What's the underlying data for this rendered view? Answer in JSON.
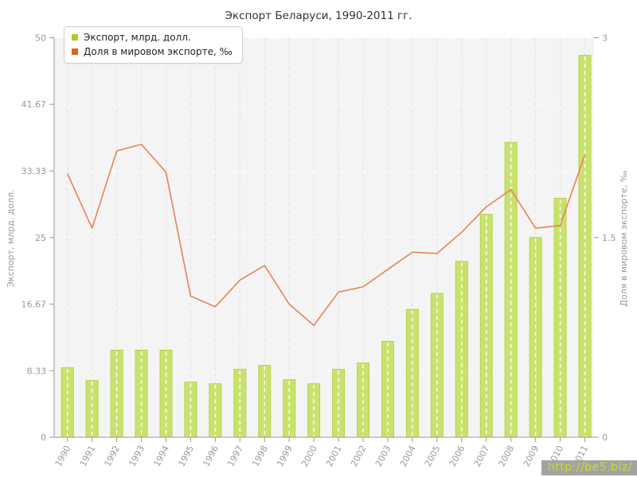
{
  "title": "Экспорт Беларуси, 1990-2011 гг.",
  "legend": {
    "items": [
      {
        "label": "Экспорт, млрд. долл.",
        "color": "#a9cc2f"
      },
      {
        "label": "Доля в мировом экспорте, ‰",
        "color": "#dd6428"
      }
    ]
  },
  "watermark": {
    "text": "http://be5.biz/"
  },
  "colors": {
    "plot_bg": "#f4f4f4",
    "grid_horizontal": "#ffffff",
    "grid_vertical": "#e3e3e3",
    "axis_line": "#9a9a9a",
    "tick_text": "#999999",
    "bar_fill": "#c9e26e",
    "bar_border": "#b3d449",
    "bar_center_dash": "#ffffff",
    "line_color": "#e8825a"
  },
  "chart_data": {
    "type": "combo",
    "title": "Экспорт Беларуси, 1990-2011 гг.",
    "categories": [
      "1990",
      "1991",
      "1992",
      "1993",
      "1994",
      "1995",
      "1996",
      "1997",
      "1998",
      "1999",
      "2000",
      "2001",
      "2002",
      "2003",
      "2004",
      "2005",
      "2006",
      "2007",
      "2008",
      "2009",
      "2010",
      "2011"
    ],
    "series": [
      {
        "name": "Экспорт, млрд. долл.",
        "type": "bar",
        "axis": "left",
        "values": [
          8.7,
          7.1,
          10.9,
          10.9,
          10.9,
          6.9,
          6.7,
          8.5,
          9.0,
          7.2,
          6.7,
          8.5,
          9.3,
          12.0,
          16.0,
          18.0,
          22.0,
          27.9,
          36.9,
          25.0,
          29.9,
          47.8
        ]
      },
      {
        "name": "Доля в мировом экспорте, ‰",
        "type": "line",
        "axis": "right",
        "values": [
          1.98,
          1.57,
          2.15,
          2.2,
          1.99,
          1.06,
          0.98,
          1.18,
          1.29,
          1.0,
          0.84,
          1.09,
          1.13,
          1.26,
          1.39,
          1.38,
          1.54,
          1.73,
          1.86,
          1.57,
          1.59,
          2.12
        ]
      }
    ],
    "left_axis": {
      "title": "Экспорт, млрд. долл.",
      "min": 0,
      "max": 50,
      "ticks": [
        0,
        8.33,
        16.67,
        25,
        33.33,
        41.67,
        50
      ],
      "tick_labels": [
        "0",
        "8.33",
        "16.67",
        "25",
        "33.33",
        "41.67",
        "50"
      ]
    },
    "right_axis": {
      "title": "Доля в мировом экспорте, ‰",
      "min": 0,
      "max": 3,
      "ticks": [
        0,
        1.5,
        3
      ],
      "tick_labels": [
        "0",
        "1.5",
        "3"
      ]
    },
    "grid": true,
    "legend_position": "top-left",
    "x_label_rotation": -62
  }
}
